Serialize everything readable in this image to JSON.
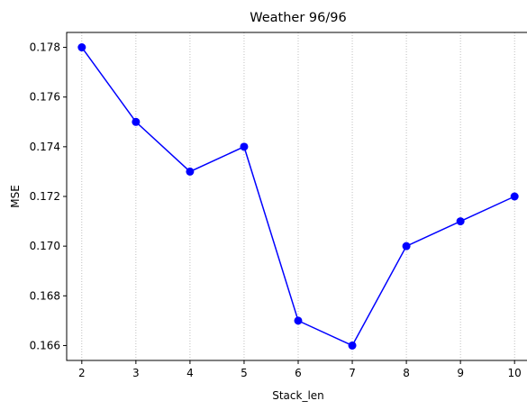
{
  "chart_data": {
    "type": "line",
    "title": "Weather 96/96",
    "xlabel": "Stack_len",
    "ylabel": "MSE",
    "x": [
      2,
      3,
      4,
      5,
      6,
      7,
      8,
      9,
      10
    ],
    "series": [
      {
        "values": [
          0.178,
          0.175,
          0.173,
          0.174,
          0.167,
          0.166,
          0.17,
          0.171,
          0.172
        ],
        "color": "#0000ff",
        "marker": "circle"
      }
    ],
    "xlim": [
      1.72,
      10.28
    ],
    "ylim": [
      0.1654,
      0.1786
    ],
    "x_ticks": [
      "2",
      "3",
      "4",
      "5",
      "6",
      "7",
      "8",
      "9",
      "10"
    ],
    "y_ticks": [
      "0.166",
      "0.168",
      "0.170",
      "0.172",
      "0.174",
      "0.176",
      "0.178"
    ],
    "grid": "vertical dotted",
    "legend": "none"
  }
}
